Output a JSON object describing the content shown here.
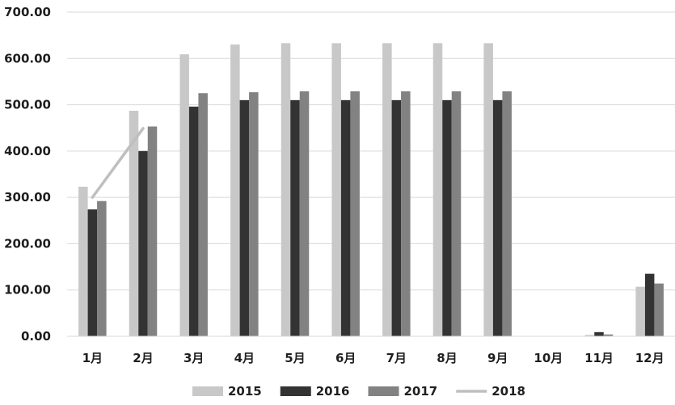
{
  "chart_data": {
    "type": "bar",
    "title": "",
    "xlabel": "",
    "ylabel": "",
    "ylim": [
      0,
      700
    ],
    "yticks": [
      0,
      100,
      200,
      300,
      400,
      500,
      600,
      700
    ],
    "ytick_labels": [
      "0.00",
      "100.00",
      "200.00",
      "300.00",
      "400.00",
      "500.00",
      "600.00",
      "700.00"
    ],
    "grid": true,
    "legend_position": "bottom",
    "categories": [
      "1月",
      "2月",
      "3月",
      "4月",
      "5月",
      "6月",
      "7月",
      "8月",
      "9月",
      "10月",
      "11月",
      "12月"
    ],
    "series": [
      {
        "name": "2015",
        "kind": "bar",
        "color": "#c8c8c8",
        "values": [
          323,
          487,
          609,
          630,
          633,
          633,
          633,
          633,
          633,
          0,
          3,
          107
        ]
      },
      {
        "name": "2016",
        "kind": "bar",
        "color": "#333333",
        "values": [
          274,
          400,
          496,
          510,
          510,
          510,
          510,
          510,
          510,
          0,
          9,
          135
        ]
      },
      {
        "name": "2017",
        "kind": "bar",
        "color": "#828282",
        "values": [
          292,
          453,
          525,
          527,
          529,
          529,
          529,
          529,
          529,
          0,
          4,
          114
        ]
      },
      {
        "name": "2018",
        "kind": "line",
        "color": "#bfbfbf",
        "values": [
          300,
          449,
          null,
          null,
          null,
          null,
          null,
          null,
          null,
          null,
          null,
          null
        ]
      }
    ]
  }
}
